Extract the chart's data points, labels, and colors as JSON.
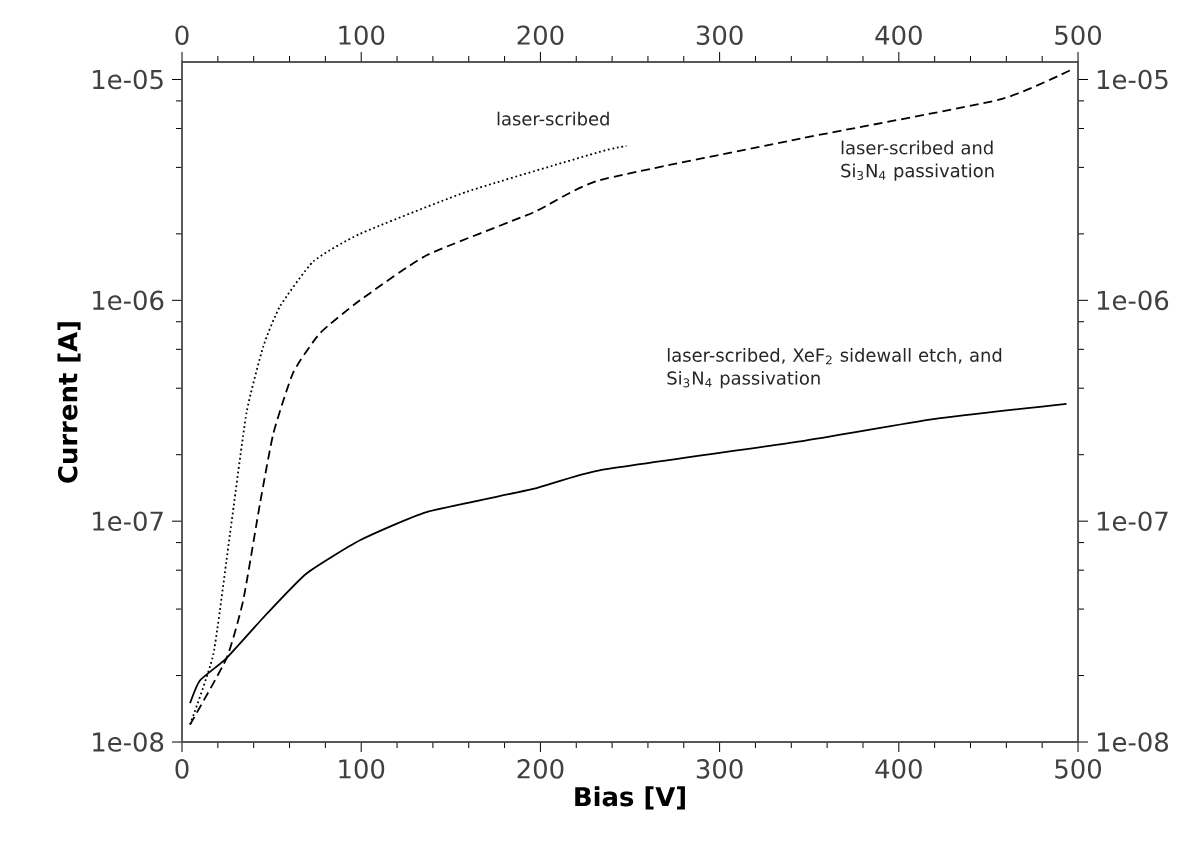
{
  "chart_data": {
    "type": "line",
    "xlabel": "Bias [V]",
    "ylabel": "Current [A]",
    "log": "y",
    "xlim": [
      0,
      500
    ],
    "ylim": [
      1e-08,
      1.2e-05
    ],
    "x2lim": [
      0,
      500
    ],
    "xticks": [
      0,
      {
        "value": 20,
        "label": null
      },
      {
        "value": 40,
        "label": null
      },
      {
        "value": 60,
        "label": null
      },
      {
        "value": 80,
        "label": null
      },
      100,
      {
        "value": 120,
        "label": null
      },
      {
        "value": 140,
        "label": null
      },
      {
        "value": 160,
        "label": null
      },
      {
        "value": 180,
        "label": null
      },
      200,
      {
        "value": 220,
        "label": null
      },
      {
        "value": 240,
        "label": null
      },
      {
        "value": 260,
        "label": null
      },
      {
        "value": 280,
        "label": null
      },
      300,
      {
        "value": 320,
        "label": null
      },
      {
        "value": 340,
        "label": null
      },
      {
        "value": 360,
        "label": null
      },
      {
        "value": 380,
        "label": null
      },
      400,
      {
        "value": 420,
        "label": null
      },
      {
        "value": 440,
        "label": null
      },
      {
        "value": 460,
        "label": null
      },
      {
        "value": 480,
        "label": null
      },
      500
    ],
    "x2ticks": [
      0,
      {
        "value": 20,
        "label": null
      },
      {
        "value": 40,
        "label": null
      },
      {
        "value": 60,
        "label": null
      },
      {
        "value": 80,
        "label": null
      },
      100,
      {
        "value": 120,
        "label": null
      },
      {
        "value": 140,
        "label": null
      },
      {
        "value": 160,
        "label": null
      },
      {
        "value": 180,
        "label": null
      },
      200,
      {
        "value": 220,
        "label": null
      },
      {
        "value": 240,
        "label": null
      },
      {
        "value": 260,
        "label": null
      },
      {
        "value": 280,
        "label": null
      },
      300,
      {
        "value": 320,
        "label": null
      },
      {
        "value": 340,
        "label": null
      },
      {
        "value": 360,
        "label": null
      },
      {
        "value": 380,
        "label": null
      },
      400,
      {
        "value": 420,
        "label": null
      },
      {
        "value": 440,
        "label": null
      },
      {
        "value": 460,
        "label": null
      },
      {
        "value": 480,
        "label": null
      },
      500
    ],
    "yticks": [
      {
        "value": 1e-08,
        "label": "1e-08"
      },
      {
        "value": 2e-08,
        "label": null
      },
      {
        "value": 4e-08,
        "label": null
      },
      {
        "value": 6e-08,
        "label": null
      },
      {
        "value": 8e-08,
        "label": null
      },
      {
        "value": 1e-07,
        "label": "1e-07"
      },
      {
        "value": 2e-07,
        "label": null
      },
      {
        "value": 4e-07,
        "label": null
      },
      {
        "value": 6e-07,
        "label": null
      },
      {
        "value": 8e-07,
        "label": null
      },
      {
        "value": 1e-06,
        "label": "1e-06"
      },
      {
        "value": 2e-06,
        "label": null
      },
      {
        "value": 4e-06,
        "label": null
      },
      {
        "value": 6e-06,
        "label": null
      },
      {
        "value": 8e-06,
        "label": null
      },
      {
        "value": 1e-05,
        "label": "1e-05"
      }
    ],
    "series": [
      {
        "name": "laser-scribed",
        "color": "#000000",
        "line_style": "dotted",
        "x": [
          4.5,
          17.5,
          26.8,
          36,
          45.4,
          54.7,
          73.3,
          99.3,
          158.8,
          233,
          248
        ],
        "values": [
          1.2e-08,
          2.5e-08,
          8.8e-08,
          3.1e-07,
          6.2e-07,
          9.4e-07,
          1.5e-06,
          2e-06,
          3.1e-06,
          4.7e-06,
          5e-06
        ]
      },
      {
        "name": "laser-scribed and Si$_{3}$N$_{4}$ passivation",
        "color": "#000000",
        "line_style": "dashed",
        "x": [
          4.5,
          24.9,
          34.2,
          43.5,
          51,
          62,
          77,
          99.3,
          136.5,
          196,
          233,
          345,
          456,
          495.5
        ],
        "values": [
          1.2e-08,
          2.4e-08,
          4.4e-08,
          1.2e-07,
          2.5e-07,
          4.7e-07,
          7.1e-07,
          1e-06,
          1.6e-06,
          2.5e-06,
          3.5e-06,
          5.4e-06,
          8.1e-06,
          1.1e-05
        ]
      },
      {
        "name": "laser-scribed, XeF$_{2}$ sidewall etch, and Si$_{3}$N$_{4}$ passivation",
        "color": "#000000",
        "line_style": "solid",
        "x": [
          4.5,
          10,
          24.9,
          47.2,
          69.5,
          99.3,
          136.5,
          196,
          233,
          345,
          419.3,
          493.6
        ],
        "values": [
          1.5e-08,
          1.9e-08,
          2.4e-08,
          3.8e-08,
          5.8e-08,
          8.2e-08,
          1.1e-07,
          1.4e-07,
          1.7e-07,
          2.3e-07,
          2.9e-07,
          3.4e-07
        ]
      }
    ]
  }
}
